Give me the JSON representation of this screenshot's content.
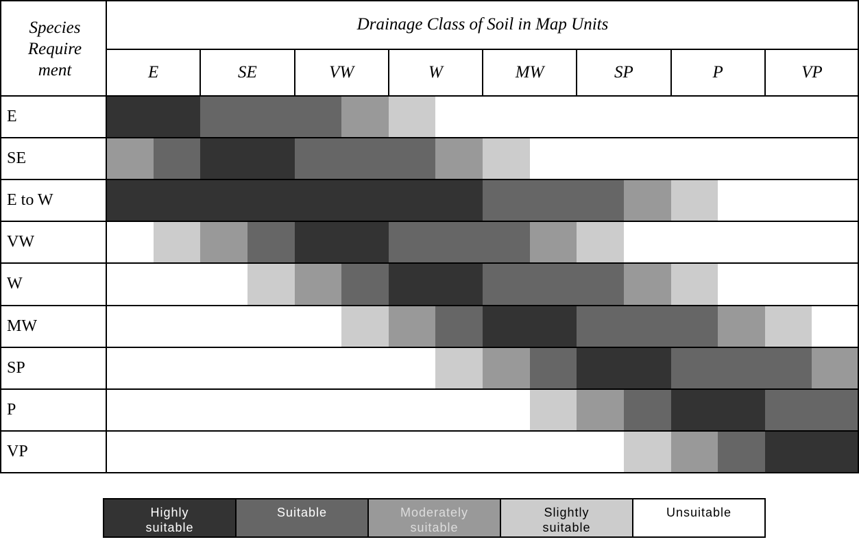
{
  "header": {
    "corner": "Species Requirement",
    "title": "Drainage Class of Soil in Map Units",
    "columns": [
      "E",
      "SE",
      "VW",
      "W",
      "MW",
      "SP",
      "P",
      "VP"
    ]
  },
  "legend": [
    {
      "label": "Highly suitable",
      "color": "#333333",
      "text_color": "#ffffff"
    },
    {
      "label": "Suitable",
      "color": "#666666",
      "text_color": "#ffffff"
    },
    {
      "label": "Moderately suitable",
      "color": "#999999",
      "text_color": "#dddddd"
    },
    {
      "label": "Slightly suitable",
      "color": "#cccccc",
      "text_color": "#000000"
    },
    {
      "label": "Unsuitable",
      "color": "#ffffff",
      "text_color": "#000000"
    }
  ],
  "rows": [
    {
      "label": "E",
      "cells": [
        0,
        0,
        1,
        1,
        1,
        2,
        3,
        4,
        4,
        4,
        4,
        4,
        4,
        4,
        4,
        4
      ]
    },
    {
      "label": "SE",
      "cells": [
        2,
        1,
        0,
        0,
        1,
        1,
        1,
        2,
        3,
        4,
        4,
        4,
        4,
        4,
        4,
        4
      ]
    },
    {
      "label": "E to W",
      "cells": [
        0,
        0,
        0,
        0,
        0,
        0,
        0,
        0,
        1,
        1,
        1,
        2,
        3,
        4,
        4,
        4
      ]
    },
    {
      "label": "VW",
      "cells": [
        4,
        3,
        2,
        1,
        0,
        0,
        1,
        1,
        1,
        2,
        3,
        4,
        4,
        4,
        4,
        4
      ]
    },
    {
      "label": "W",
      "cells": [
        4,
        4,
        4,
        3,
        2,
        1,
        0,
        0,
        1,
        1,
        1,
        2,
        3,
        4,
        4,
        4
      ]
    },
    {
      "label": "MW",
      "cells": [
        4,
        4,
        4,
        4,
        4,
        3,
        2,
        1,
        0,
        0,
        1,
        1,
        1,
        2,
        3,
        4
      ]
    },
    {
      "label": "SP",
      "cells": [
        4,
        4,
        4,
        4,
        4,
        4,
        4,
        3,
        2,
        1,
        0,
        0,
        1,
        1,
        1,
        2
      ]
    },
    {
      "label": "P",
      "cells": [
        4,
        4,
        4,
        4,
        4,
        4,
        4,
        4,
        4,
        3,
        2,
        1,
        0,
        0,
        1,
        1
      ]
    },
    {
      "label": "VP",
      "cells": [
        4,
        4,
        4,
        4,
        4,
        4,
        4,
        4,
        4,
        4,
        4,
        3,
        2,
        1,
        0,
        0
      ]
    }
  ]
}
